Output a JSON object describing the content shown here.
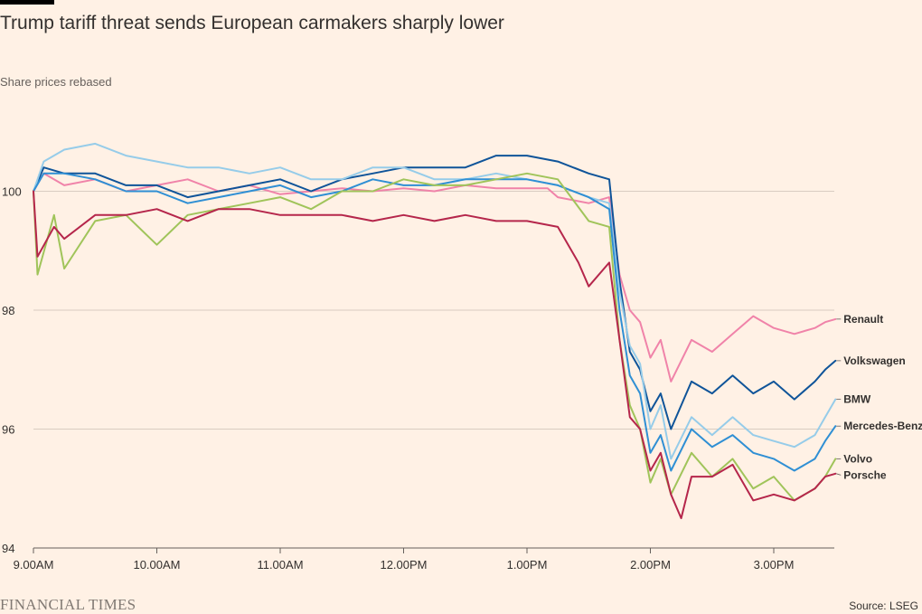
{
  "header": {
    "title": "Trump tariff threat sends European carmakers sharply lower",
    "subtitle": "Share prices rebased"
  },
  "footer": {
    "logo": "FINANCIAL TIMES",
    "source": "Source: LSEG"
  },
  "colors": {
    "background": "#fff1e5",
    "gridline": "#d9ccc1",
    "axis": "#66605c"
  },
  "chart_data": {
    "type": "line",
    "title": "Trump tariff threat sends European carmakers sharply lower",
    "subtitle": "Share prices rebased",
    "xlabel": "",
    "ylabel": "",
    "x_range": [
      "9:00",
      "15:33"
    ],
    "ylim": [
      94,
      102
    ],
    "y_ticks": [
      94,
      96,
      98,
      100
    ],
    "x_ticks": [
      {
        "t": "9:00",
        "label": "9.00AM"
      },
      {
        "t": "10:00",
        "label": "10.00AM"
      },
      {
        "t": "11:00",
        "label": "11.00AM"
      },
      {
        "t": "12:00",
        "label": "12.00PM"
      },
      {
        "t": "13:00",
        "label": "1.00PM"
      },
      {
        "t": "14:00",
        "label": "2.00PM"
      },
      {
        "t": "15:00",
        "label": "3.00PM"
      }
    ],
    "grid": true,
    "legend": "direct labels at line ends",
    "series": [
      {
        "name": "Renault",
        "color": "#f083a9",
        "end_value": 97.85,
        "points": [
          [
            "9:00",
            100
          ],
          [
            "9:05",
            100.3
          ],
          [
            "9:15",
            100.1
          ],
          [
            "9:30",
            100.2
          ],
          [
            "9:45",
            100.0
          ],
          [
            "10:00",
            100.1
          ],
          [
            "10:15",
            100.2
          ],
          [
            "10:30",
            100.0
          ],
          [
            "10:45",
            100.1
          ],
          [
            "11:00",
            99.95
          ],
          [
            "11:15",
            100.0
          ],
          [
            "11:30",
            100.05
          ],
          [
            "11:45",
            100.0
          ],
          [
            "12:00",
            100.05
          ],
          [
            "12:15",
            100.0
          ],
          [
            "12:30",
            100.1
          ],
          [
            "12:45",
            100.05
          ],
          [
            "13:00",
            100.05
          ],
          [
            "13:10",
            100.05
          ],
          [
            "13:15",
            99.9
          ],
          [
            "13:30",
            99.8
          ],
          [
            "13:40",
            99.9
          ],
          [
            "13:45",
            98.6
          ],
          [
            "13:50",
            98.0
          ],
          [
            "13:55",
            97.8
          ],
          [
            "14:00",
            97.2
          ],
          [
            "14:05",
            97.5
          ],
          [
            "14:10",
            96.8
          ],
          [
            "14:20",
            97.5
          ],
          [
            "14:30",
            97.3
          ],
          [
            "14:40",
            97.6
          ],
          [
            "14:50",
            97.9
          ],
          [
            "15:00",
            97.7
          ],
          [
            "15:10",
            97.6
          ],
          [
            "15:20",
            97.7
          ],
          [
            "15:25",
            97.8
          ],
          [
            "15:30",
            97.85
          ]
        ]
      },
      {
        "name": "Volkswagen",
        "color": "#0f5499",
        "end_value": 97.15,
        "points": [
          [
            "9:00",
            100
          ],
          [
            "9:05",
            100.4
          ],
          [
            "9:15",
            100.3
          ],
          [
            "9:30",
            100.3
          ],
          [
            "9:45",
            100.1
          ],
          [
            "10:00",
            100.1
          ],
          [
            "10:15",
            99.9
          ],
          [
            "10:30",
            100.0
          ],
          [
            "10:45",
            100.1
          ],
          [
            "11:00",
            100.2
          ],
          [
            "11:15",
            100.0
          ],
          [
            "11:30",
            100.2
          ],
          [
            "11:45",
            100.3
          ],
          [
            "12:00",
            100.4
          ],
          [
            "12:15",
            100.4
          ],
          [
            "12:30",
            100.4
          ],
          [
            "12:45",
            100.6
          ],
          [
            "13:00",
            100.6
          ],
          [
            "13:15",
            100.5
          ],
          [
            "13:30",
            100.3
          ],
          [
            "13:40",
            100.2
          ],
          [
            "13:45",
            98.5
          ],
          [
            "13:50",
            97.3
          ],
          [
            "13:55",
            97.0
          ],
          [
            "14:00",
            96.3
          ],
          [
            "14:05",
            96.6
          ],
          [
            "14:10",
            96.0
          ],
          [
            "14:20",
            96.8
          ],
          [
            "14:30",
            96.6
          ],
          [
            "14:40",
            96.9
          ],
          [
            "14:50",
            96.6
          ],
          [
            "15:00",
            96.8
          ],
          [
            "15:10",
            96.5
          ],
          [
            "15:20",
            96.8
          ],
          [
            "15:25",
            97.0
          ],
          [
            "15:30",
            97.15
          ]
        ]
      },
      {
        "name": "BMW",
        "color": "#96cce9",
        "end_value": 96.5,
        "points": [
          [
            "9:00",
            100
          ],
          [
            "9:05",
            100.5
          ],
          [
            "9:15",
            100.7
          ],
          [
            "9:30",
            100.8
          ],
          [
            "9:45",
            100.6
          ],
          [
            "10:00",
            100.5
          ],
          [
            "10:15",
            100.4
          ],
          [
            "10:30",
            100.4
          ],
          [
            "10:45",
            100.3
          ],
          [
            "11:00",
            100.4
          ],
          [
            "11:15",
            100.2
          ],
          [
            "11:30",
            100.2
          ],
          [
            "11:45",
            100.4
          ],
          [
            "12:00",
            100.4
          ],
          [
            "12:15",
            100.2
          ],
          [
            "12:30",
            100.2
          ],
          [
            "12:45",
            100.3
          ],
          [
            "13:00",
            100.2
          ],
          [
            "13:15",
            100.1
          ],
          [
            "13:30",
            99.9
          ],
          [
            "13:40",
            99.8
          ],
          [
            "13:45",
            98.3
          ],
          [
            "13:50",
            97.4
          ],
          [
            "13:55",
            97.1
          ],
          [
            "14:00",
            96.0
          ],
          [
            "14:05",
            96.4
          ],
          [
            "14:10",
            95.5
          ],
          [
            "14:20",
            96.2
          ],
          [
            "14:30",
            95.9
          ],
          [
            "14:40",
            96.2
          ],
          [
            "14:50",
            95.9
          ],
          [
            "15:00",
            95.8
          ],
          [
            "15:10",
            95.7
          ],
          [
            "15:20",
            95.9
          ],
          [
            "15:25",
            96.2
          ],
          [
            "15:30",
            96.5
          ]
        ]
      },
      {
        "name": "Mercedes-Benz",
        "color": "#2f8fd4",
        "end_value": 96.05,
        "points": [
          [
            "9:00",
            100
          ],
          [
            "9:05",
            100.3
          ],
          [
            "9:15",
            100.3
          ],
          [
            "9:30",
            100.2
          ],
          [
            "9:45",
            100.0
          ],
          [
            "10:00",
            100.0
          ],
          [
            "10:15",
            99.8
          ],
          [
            "10:30",
            99.9
          ],
          [
            "10:45",
            100.0
          ],
          [
            "11:00",
            100.1
          ],
          [
            "11:15",
            99.9
          ],
          [
            "11:30",
            100.0
          ],
          [
            "11:45",
            100.2
          ],
          [
            "12:00",
            100.1
          ],
          [
            "12:15",
            100.1
          ],
          [
            "12:30",
            100.2
          ],
          [
            "12:45",
            100.2
          ],
          [
            "13:00",
            100.2
          ],
          [
            "13:15",
            100.1
          ],
          [
            "13:30",
            99.9
          ],
          [
            "13:40",
            99.7
          ],
          [
            "13:45",
            98.0
          ],
          [
            "13:50",
            96.9
          ],
          [
            "13:55",
            96.6
          ],
          [
            "14:00",
            95.6
          ],
          [
            "14:05",
            95.9
          ],
          [
            "14:10",
            95.3
          ],
          [
            "14:20",
            96.0
          ],
          [
            "14:30",
            95.7
          ],
          [
            "14:40",
            95.9
          ],
          [
            "14:50",
            95.6
          ],
          [
            "15:00",
            95.5
          ],
          [
            "15:10",
            95.3
          ],
          [
            "15:20",
            95.5
          ],
          [
            "15:25",
            95.8
          ],
          [
            "15:30",
            96.05
          ]
        ]
      },
      {
        "name": "Volvo",
        "color": "#a0c45a",
        "end_value": 95.5,
        "points": [
          [
            "9:00",
            100
          ],
          [
            "9:02",
            98.6
          ],
          [
            "9:10",
            99.6
          ],
          [
            "9:15",
            98.7
          ],
          [
            "9:30",
            99.5
          ],
          [
            "9:45",
            99.6
          ],
          [
            "10:00",
            99.1
          ],
          [
            "10:15",
            99.6
          ],
          [
            "10:30",
            99.7
          ],
          [
            "10:45",
            99.8
          ],
          [
            "11:00",
            99.9
          ],
          [
            "11:15",
            99.7
          ],
          [
            "11:30",
            100.0
          ],
          [
            "11:45",
            100.0
          ],
          [
            "12:00",
            100.2
          ],
          [
            "12:15",
            100.1
          ],
          [
            "12:30",
            100.1
          ],
          [
            "12:45",
            100.2
          ],
          [
            "13:00",
            100.3
          ],
          [
            "13:15",
            100.2
          ],
          [
            "13:30",
            99.5
          ],
          [
            "13:40",
            99.4
          ],
          [
            "13:45",
            97.5
          ],
          [
            "13:50",
            96.4
          ],
          [
            "13:55",
            96.0
          ],
          [
            "14:00",
            95.1
          ],
          [
            "14:05",
            95.5
          ],
          [
            "14:10",
            94.9
          ],
          [
            "14:20",
            95.6
          ],
          [
            "14:30",
            95.2
          ],
          [
            "14:40",
            95.5
          ],
          [
            "14:50",
            95.0
          ],
          [
            "15:00",
            95.2
          ],
          [
            "15:10",
            94.8
          ],
          [
            "15:20",
            95.0
          ],
          [
            "15:25",
            95.2
          ],
          [
            "15:30",
            95.5
          ]
        ]
      },
      {
        "name": "Porsche",
        "color": "#b5264b",
        "end_value": 95.25,
        "points": [
          [
            "9:00",
            100
          ],
          [
            "9:02",
            98.9
          ],
          [
            "9:10",
            99.4
          ],
          [
            "9:15",
            99.2
          ],
          [
            "9:30",
            99.6
          ],
          [
            "9:45",
            99.6
          ],
          [
            "10:00",
            99.7
          ],
          [
            "10:15",
            99.5
          ],
          [
            "10:30",
            99.7
          ],
          [
            "10:45",
            99.7
          ],
          [
            "11:00",
            99.6
          ],
          [
            "11:15",
            99.6
          ],
          [
            "11:30",
            99.6
          ],
          [
            "11:45",
            99.5
          ],
          [
            "12:00",
            99.6
          ],
          [
            "12:15",
            99.5
          ],
          [
            "12:30",
            99.6
          ],
          [
            "12:45",
            99.5
          ],
          [
            "13:00",
            99.5
          ],
          [
            "13:15",
            99.4
          ],
          [
            "13:25",
            98.8
          ],
          [
            "13:30",
            98.4
          ],
          [
            "13:40",
            98.8
          ],
          [
            "13:45",
            97.5
          ],
          [
            "13:50",
            96.2
          ],
          [
            "13:55",
            96.0
          ],
          [
            "14:00",
            95.3
          ],
          [
            "14:05",
            95.6
          ],
          [
            "14:10",
            94.9
          ],
          [
            "14:15",
            94.5
          ],
          [
            "14:20",
            95.2
          ],
          [
            "14:30",
            95.2
          ],
          [
            "14:40",
            95.4
          ],
          [
            "14:50",
            94.8
          ],
          [
            "15:00",
            94.9
          ],
          [
            "15:10",
            94.8
          ],
          [
            "15:20",
            95.0
          ],
          [
            "15:25",
            95.2
          ],
          [
            "15:30",
            95.25
          ]
        ]
      }
    ]
  }
}
